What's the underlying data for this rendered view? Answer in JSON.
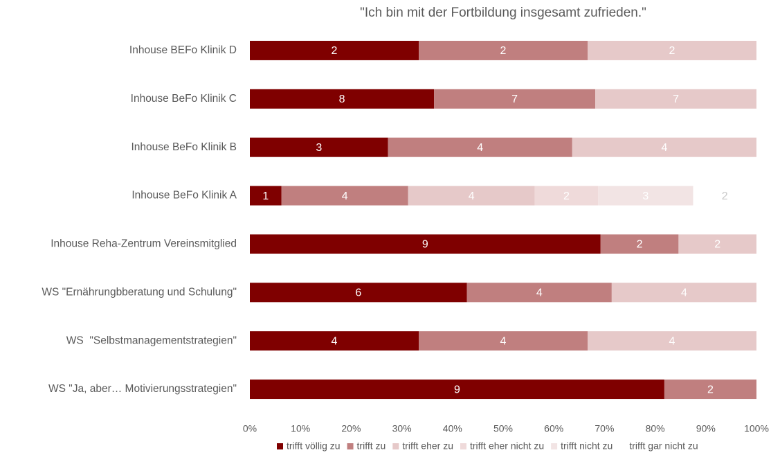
{
  "chart_data": {
    "type": "bar",
    "orientation": "horizontal",
    "stacking": "percent",
    "title": "\"Ich bin mit der Fortbildung insgesamt zufrieden.\"",
    "categories": [
      "Inhouse BEFo Klinik D",
      "Inhouse BeFo Klinik C",
      "Inhouse BeFo Klinik B",
      "Inhouse BeFo Klinik A",
      "Inhouse Reha-Zentrum Vereinsmitglied",
      "WS \"Ernährungbberatung und Schulung\"",
      "WS  \"Selbstmanagementstrategien\"",
      "WS \"Ja, aber… Motivierungsstrategien\""
    ],
    "series": [
      {
        "name": "trifft völlig zu",
        "color": "#7f0000",
        "values": [
          2,
          8,
          3,
          1,
          9,
          6,
          4,
          9
        ]
      },
      {
        "name": "trifft zu",
        "color": "#c07f7f",
        "values": [
          2,
          7,
          4,
          4,
          2,
          4,
          4,
          2
        ]
      },
      {
        "name": "trifft eher zu",
        "color": "#e6c9c9",
        "values": [
          2,
          7,
          4,
          4,
          2,
          4,
          4,
          null
        ]
      },
      {
        "name": "trifft eher nicht zu",
        "color": "#efdada",
        "values": [
          null,
          null,
          null,
          2,
          null,
          null,
          null,
          null
        ]
      },
      {
        "name": "trifft nicht zu",
        "color": "#f2e4e4",
        "values": [
          null,
          null,
          null,
          3,
          null,
          null,
          null,
          null
        ]
      },
      {
        "name": "trifft gar nicht zu",
        "color": "#ffffff",
        "values": [
          null,
          null,
          null,
          2,
          null,
          null,
          null,
          null
        ]
      }
    ],
    "xlim": [
      0,
      100
    ],
    "xticks": [
      {
        "value": 0,
        "label": "0%"
      },
      {
        "value": 10,
        "label": "10%"
      },
      {
        "value": 20,
        "label": "20%"
      },
      {
        "value": 30,
        "label": "30%"
      },
      {
        "value": 40,
        "label": "40%"
      },
      {
        "value": 50,
        "label": "50%"
      },
      {
        "value": 60,
        "label": "60%"
      },
      {
        "value": 70,
        "label": "70%"
      },
      {
        "value": 80,
        "label": "80%"
      },
      {
        "value": 90,
        "label": "90%"
      },
      {
        "value": 100,
        "label": "100%"
      }
    ],
    "grid": false,
    "legend": "bottom"
  }
}
